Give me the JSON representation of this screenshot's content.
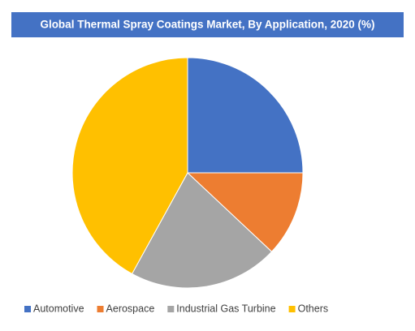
{
  "chart_data": {
    "type": "pie",
    "title": "Global Thermal Spray Coatings Market, By Application, 2020 (%)",
    "categories": [
      "Automotive",
      "Aerospace",
      "Industrial Gas Turbine",
      "Others"
    ],
    "values": [
      25,
      12,
      21,
      42
    ],
    "colors": [
      "#4472c4",
      "#ed7d31",
      "#a5a5a5",
      "#ffc000"
    ],
    "legend": "bottom"
  }
}
